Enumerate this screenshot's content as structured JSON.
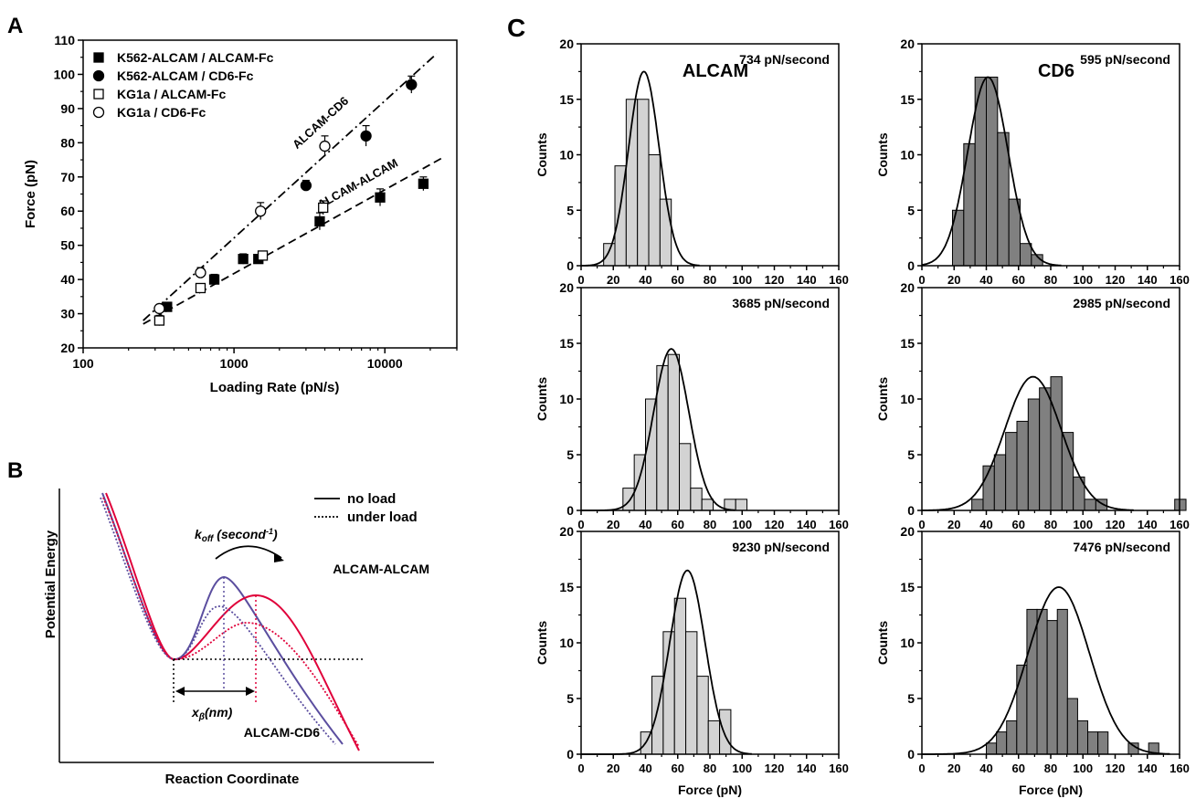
{
  "panel_letters": {
    "a": "A",
    "b": "B",
    "c": "C"
  },
  "colors": {
    "alcam_alcam": "#e0003a",
    "alcam_cd6": "#5b4e9f",
    "bar_alcam": "#d3d3d3",
    "bar_cd6": "#808080",
    "ink": "#000000"
  },
  "chart_data": [
    {
      "id": "A",
      "type": "scatter",
      "xscale": "log",
      "xlim": [
        100,
        30000
      ],
      "ylim": [
        20,
        110
      ],
      "xticks": [
        100,
        1000,
        10000
      ],
      "xtick_labels": [
        "100",
        "1000",
        "10000"
      ],
      "yticks": [
        20,
        30,
        40,
        50,
        60,
        70,
        80,
        90,
        100,
        110
      ],
      "xlabel": "Loading Rate (pN/s)",
      "ylabel": "Force (pN)",
      "legend_position": "top-left",
      "series": [
        {
          "name": "K562-ALCAM / ALCAM-Fc",
          "marker": "filled-square",
          "points": [
            [
              360,
              32,
              1
            ],
            [
              740,
              40,
              1.5
            ],
            [
              1150,
              46,
              1.5
            ],
            [
              1450,
              46,
              1
            ],
            [
              3700,
              57,
              2.5
            ],
            [
              9300,
              64,
              2.5
            ],
            [
              18000,
              68,
              2
            ]
          ]
        },
        {
          "name": "K562-ALCAM / CD6-Fc",
          "marker": "filled-circle",
          "points": [
            [
              3000,
              67.5,
              1.5
            ],
            [
              7500,
              82,
              3
            ],
            [
              15000,
              97,
              2.5
            ]
          ]
        },
        {
          "name": "KG1a / ALCAM-Fc",
          "marker": "open-square",
          "points": [
            [
              320,
              28,
              1.5
            ],
            [
              600,
              37.5,
              1
            ],
            [
              1550,
              47,
              1
            ],
            [
              3900,
              61,
              2
            ]
          ]
        },
        {
          "name": "KG1a / CD6-Fc",
          "marker": "open-circle",
          "points": [
            [
              320,
              31.5,
              1
            ],
            [
              600,
              42,
              1.5
            ],
            [
              1500,
              60,
              2.5
            ],
            [
              4000,
              79,
              3
            ]
          ]
        }
      ],
      "fit_lines": [
        {
          "label": "ALCAM-CD6",
          "style": "dash-dot",
          "x": [
            250,
            22000
          ],
          "y": [
            28,
            106
          ]
        },
        {
          "label": "ALCAM-ALCAM",
          "style": "dashed",
          "x": [
            250,
            25000
          ],
          "y": [
            27,
            76
          ]
        }
      ]
    },
    {
      "id": "B",
      "type": "line",
      "xlabel": "Reaction Coordinate",
      "ylabel": "Potential Energy",
      "legend": {
        "solid": "no load",
        "dotted": "under load"
      },
      "annotations": {
        "koff_main": "k",
        "koff_sub": "off",
        "koff_unit": " (second",
        "koff_exp": "-1",
        "koff_close": ")",
        "xb_main": "x",
        "xb_sub": "β",
        "xb_unit": "(nm)"
      },
      "series": [
        {
          "name": "ALCAM-ALCAM",
          "color": "#e0003a",
          "barrier_pos": 5.0,
          "barrier_height": 6.5,
          "under_load_height": 4.2
        },
        {
          "name": "ALCAM-CD6",
          "color": "#5b4e9f",
          "barrier_pos": 3.0,
          "barrier_height": 5.5,
          "under_load_height": 4.0
        }
      ]
    },
    {
      "id": "C",
      "type": "bar",
      "column_titles": [
        "ALCAM",
        "CD6"
      ],
      "xlabel": "Force (pN)",
      "ylabel": "Counts",
      "xlim": [
        0,
        160
      ],
      "ylim": [
        0,
        20
      ],
      "xticks": [
        0,
        20,
        40,
        60,
        80,
        100,
        120,
        140,
        160
      ],
      "yticks": [
        0,
        5,
        10,
        15,
        20
      ],
      "histograms": [
        {
          "group": "ALCAM",
          "rate": "734 pN/second",
          "bin_width": 7,
          "bin_start": 14,
          "counts": [
            2,
            9,
            15,
            15,
            10,
            6
          ],
          "fit_mean": 39,
          "fit_sd": 9.5,
          "fit_peak": 17.5
        },
        {
          "group": "CD6",
          "rate": "595 pN/second",
          "bin_width": 7,
          "bin_start": 19,
          "counts": [
            5,
            11,
            17,
            17,
            12,
            6,
            2,
            1
          ],
          "fit_mean": 41,
          "fit_sd": 12.5,
          "fit_peak": 17
        },
        {
          "group": "ALCAM",
          "rate": "3685 pN/second",
          "bin_width": 7,
          "bin_start": 26,
          "counts": [
            2,
            5,
            10,
            13,
            14,
            6,
            2,
            1,
            0,
            1,
            1
          ],
          "fit_mean": 56,
          "fit_sd": 11,
          "fit_peak": 14.5
        },
        {
          "group": "CD6",
          "rate": "2985 pN/second",
          "bin_width": 7,
          "bin_start": 31,
          "counts": [
            1,
            4,
            5,
            7,
            8,
            10,
            11,
            12,
            7,
            3,
            1,
            1,
            0,
            0,
            0,
            0,
            0,
            0,
            1
          ],
          "fit_mean": 69,
          "fit_sd": 17.5,
          "fit_peak": 12
        },
        {
          "group": "ALCAM",
          "rate": "9230 pN/second",
          "bin_width": 7,
          "bin_start": 37,
          "counts": [
            2,
            7,
            11,
            14,
            11,
            7,
            3,
            4
          ],
          "fit_mean": 66,
          "fit_sd": 11,
          "fit_peak": 16.5
        },
        {
          "group": "CD6",
          "rate": "7476 pN/second",
          "bin_width": 6.3,
          "bin_start": 40,
          "counts": [
            1,
            2,
            3,
            8,
            13,
            13,
            12,
            13,
            5,
            3,
            2,
            2,
            0,
            0,
            1,
            0,
            1
          ],
          "fit_mean": 85,
          "fit_sd": 19,
          "fit_peak": 15
        }
      ]
    }
  ]
}
